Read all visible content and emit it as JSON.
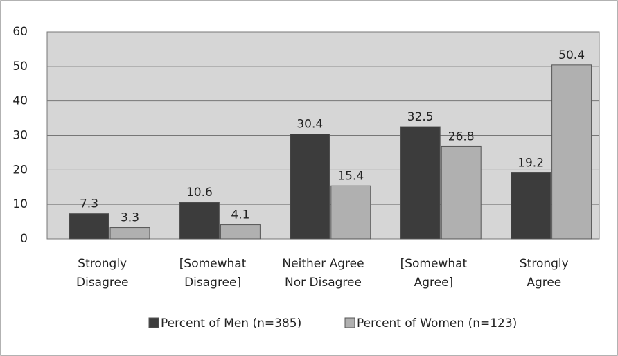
{
  "chart_data": {
    "type": "bar",
    "categories": [
      [
        "Strongly",
        "Disagree"
      ],
      [
        "[Somewhat",
        "Disagree]"
      ],
      [
        "Neither Agree",
        "Nor Disagree"
      ],
      [
        "[Somewhat",
        "Agree]"
      ],
      [
        "Strongly",
        "Agree"
      ]
    ],
    "series": [
      {
        "name": "Percent of Men (n=385)",
        "color": "#3c3c3c",
        "values": [
          7.3,
          10.6,
          30.4,
          32.5,
          19.2
        ]
      },
      {
        "name": "Percent of Women (n=123)",
        "color": "#b0b0b0",
        "values": [
          3.3,
          4.1,
          15.4,
          26.8,
          50.4
        ]
      }
    ],
    "ylim": [
      0,
      60
    ],
    "yticks": [
      0,
      10,
      20,
      30,
      40,
      50,
      60
    ],
    "grid": true
  }
}
